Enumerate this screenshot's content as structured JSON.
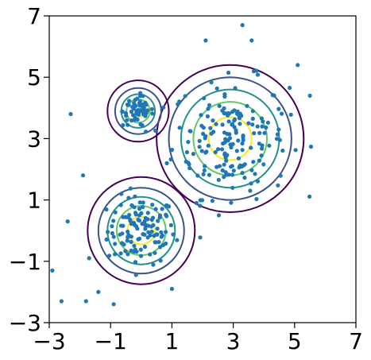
{
  "chart_data": {
    "type": "scatter",
    "title": "",
    "xlabel": "",
    "ylabel": "",
    "xlim": [
      -3,
      7
    ],
    "ylim": [
      -3,
      7
    ],
    "grid": false,
    "x_ticks": [
      -3,
      -1,
      1,
      3,
      5,
      7
    ],
    "y_ticks": [
      -3,
      -1,
      1,
      3,
      5,
      7
    ],
    "x_tick_labels": [
      "−3",
      "−1",
      "1",
      "3",
      "5",
      "7"
    ],
    "y_tick_labels": [
      "−3",
      "−1",
      "1",
      "3",
      "5",
      "7"
    ],
    "point_color": "#1f77b4",
    "contour_colors": [
      "#440154",
      "#3b528b",
      "#21918c",
      "#5ec962",
      "#fde725"
    ],
    "clusters": [
      {
        "center": [
          0,
          0
        ],
        "spread": 0.55,
        "contour_radii": [
          1.75,
          1.4,
          1.1,
          0.8,
          0.45
        ],
        "n_points": 120
      },
      {
        "center": [
          2.9,
          3.0
        ],
        "spread": 0.95,
        "contour_radii": [
          2.4,
          2.0,
          1.6,
          1.2,
          0.7
        ],
        "n_points": 180
      },
      {
        "center": [
          -0.1,
          3.9
        ],
        "spread": 0.25,
        "contour_radii": [
          1.0,
          0.75,
          0.55,
          0.38,
          0.2
        ],
        "n_points": 60
      }
    ],
    "scattered_points": [
      [
        -2.3,
        3.8
      ],
      [
        -2.9,
        -1.3
      ],
      [
        -2.6,
        -2.3
      ],
      [
        -1.8,
        -2.3
      ],
      [
        -1.4,
        -2.0
      ],
      [
        -0.9,
        -2.4
      ],
      [
        -1.9,
        1.8
      ],
      [
        -1.7,
        -0.9
      ],
      [
        2.1,
        6.2
      ],
      [
        3.3,
        6.7
      ],
      [
        3.6,
        6.2
      ],
      [
        5.1,
        5.4
      ],
      [
        5.5,
        4.4
      ],
      [
        1.0,
        -1.9
      ],
      [
        -2.4,
        0.3
      ],
      [
        1.8,
        0.9
      ]
    ]
  }
}
